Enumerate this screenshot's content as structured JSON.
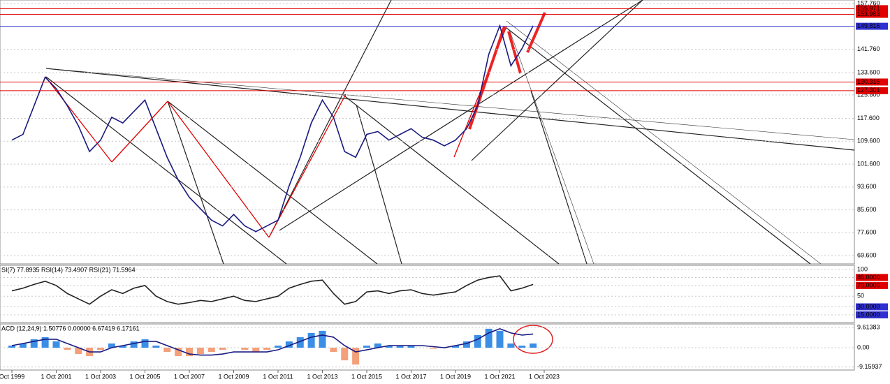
{
  "chart_data": [
    {
      "type": "line",
      "color": "#1a1a80",
      "categories": [
        "Oct 1999",
        null,
        null,
        null,
        "1 Oct 2001",
        null,
        null,
        null,
        "1 Oct 2003",
        null,
        null,
        null,
        "1 Oct 2005",
        null,
        null,
        null,
        "1 Oct 2007",
        null,
        null,
        null,
        "1 Oct 2009",
        null,
        null,
        null,
        "1 Oct 2011",
        null,
        null,
        null,
        "1 Oct 2013",
        null,
        null,
        null,
        "1 Oct 2015",
        null,
        null,
        null,
        "1 Oct 2017",
        null,
        null,
        null,
        "1 Oct 2019",
        null,
        null,
        null,
        "1 Oct 2021",
        null,
        null,
        null,
        "1 Oct 2023"
      ],
      "values": [
        110,
        112,
        122,
        132,
        128,
        122,
        115,
        106,
        110,
        118,
        116,
        120,
        124,
        114,
        104,
        96,
        90,
        86,
        82,
        80,
        84,
        80,
        78,
        80,
        82,
        94,
        104,
        116,
        124,
        118,
        106,
        104,
        112,
        113,
        110,
        112,
        114,
        111,
        110,
        108,
        110,
        114,
        122,
        140,
        150,
        136,
        142,
        150,
        null
      ],
      "ylim": [
        66.7,
        159
      ],
      "yticks": [
        {
          "value": 69.6,
          "label": "69.600"
        },
        {
          "value": 77.6,
          "label": "77.600"
        },
        {
          "value": 85.6,
          "label": "85.600"
        },
        {
          "value": 93.6,
          "label": "93.600"
        },
        {
          "value": 101.6,
          "label": "101.600"
        },
        {
          "value": 109.6,
          "label": "109.600"
        },
        {
          "value": 117.6,
          "label": "117.600"
        },
        {
          "value": 125.8,
          "label": "125.800"
        },
        {
          "value": 133.6,
          "label": "133.600"
        },
        {
          "value": 141.76,
          "label": "141.760"
        },
        {
          "value": 157.76,
          "label": "157.760"
        }
      ],
      "levels": [
        155.971,
        153.983,
        149.816,
        130.315,
        127.301
      ],
      "level_colors": [
        "#e00000",
        "#e00000",
        "#3030d0",
        "#e00000",
        "#e00000"
      ],
      "grid": true
    },
    {
      "type": "line",
      "title": "SI(7) 77.8935  RSI(14) 73.4907  RSI(21) 71.5964",
      "color": "#222222",
      "values": [
        60,
        65,
        72,
        78,
        70,
        55,
        45,
        35,
        50,
        62,
        55,
        65,
        70,
        50,
        40,
        35,
        38,
        42,
        40,
        45,
        50,
        42,
        40,
        45,
        50,
        65,
        72,
        78,
        80,
        55,
        35,
        40,
        58,
        60,
        55,
        60,
        62,
        55,
        52,
        55,
        58,
        70,
        80,
        85,
        88,
        60,
        65,
        72,
        null
      ],
      "ylim": [
        0.6,
        107.8
      ],
      "yticks": [
        100,
        {
          "value": 85,
          "label": "85.0000"
        },
        {
          "value": 70,
          "label": "70.0000"
        },
        50,
        {
          "value": 30,
          "label": "30.0000"
        },
        {
          "value": 15,
          "label": "15.0000"
        }
      ],
      "tick_colors": [
        null,
        "#e00000",
        "#e00000",
        null,
        "#3030d0",
        "#3030d0"
      ],
      "grid": true
    },
    {
      "type": "macd",
      "title": "ACD (12,24,9) 1.50776 0.00000 6.67419 6.17161",
      "positive_color": "#3a8ee6",
      "negative_color": "#f4a07a",
      "line_color": "#1a1a80",
      "values": [
        1,
        2,
        4,
        5,
        3,
        -1,
        -3,
        -4,
        -1,
        2,
        1,
        3,
        4,
        1,
        -2,
        -4,
        -4,
        -3,
        -2,
        -1,
        0,
        -1,
        -2,
        -1,
        1,
        3,
        5,
        7,
        8,
        -2,
        -6,
        -8,
        1,
        2,
        1,
        1,
        1,
        0,
        -0.5,
        0,
        1,
        3,
        6,
        9,
        8,
        2,
        1,
        2,
        null
      ],
      "line": [
        1,
        2,
        3,
        4,
        4,
        2,
        0,
        -2,
        -2,
        0,
        1,
        2,
        3,
        3,
        1,
        -1,
        -3,
        -3.5,
        -3.5,
        -3,
        -2,
        -2,
        -2,
        -2,
        -1,
        1,
        3,
        5,
        6,
        5,
        1,
        -2,
        -1,
        0,
        1,
        1,
        1,
        1,
        0.5,
        0,
        1,
        2,
        4,
        7,
        9,
        7,
        6,
        6.5,
        null
      ],
      "ylim": [
        -10.6,
        11.27
      ],
      "yticks": [
        9.61383,
        {
          "value": 0,
          "label": "0.00"
        },
        -9.15937
      ],
      "grid": true
    }
  ]
}
